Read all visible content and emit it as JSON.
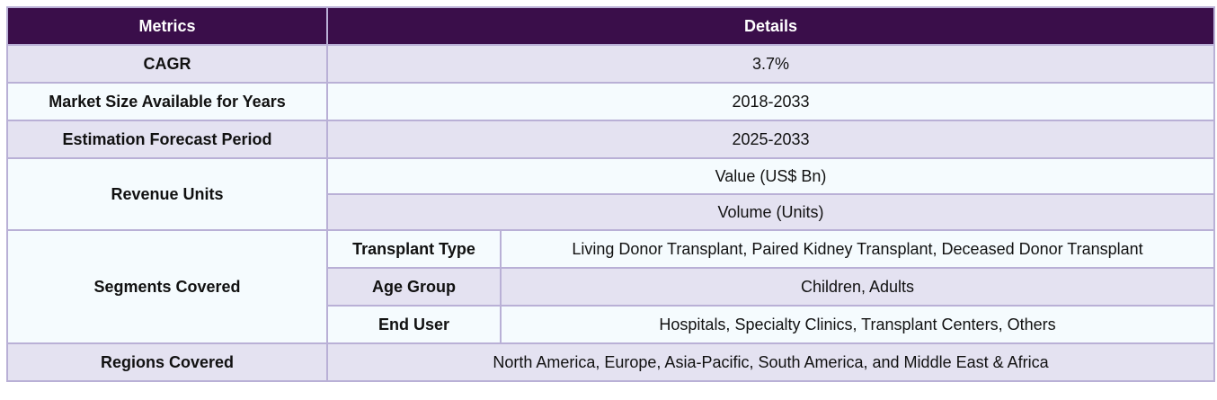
{
  "header": {
    "metrics": "Metrics",
    "details": "Details"
  },
  "rows": {
    "cagr": {
      "label": "CAGR",
      "value": "3.7%"
    },
    "market_size": {
      "label": "Market Size Available for Years",
      "value": "2018-2033"
    },
    "forecast": {
      "label": "Estimation Forecast Period",
      "value": "2025-2033"
    },
    "revenue_units": {
      "label": "Revenue Units",
      "values": [
        "Value (US$ Bn)",
        "Volume (Units)"
      ]
    },
    "segments": {
      "label": "Segments Covered",
      "items": [
        {
          "name": "Transplant Type",
          "value": "Living Donor Transplant, Paired Kidney Transplant, Deceased Donor Transplant"
        },
        {
          "name": "Age Group",
          "value": "Children, Adults"
        },
        {
          "name": "End User",
          "value": "Hospitals, Specialty Clinics, Transplant Centers, Others"
        }
      ]
    },
    "regions": {
      "label": "Regions Covered",
      "value": "North America, Europe, Asia-Pacific, South America, and Middle East & Africa"
    }
  },
  "colors": {
    "header_bg": "#3a0e4a",
    "row_lavender": "#e4e2f1",
    "row_pale": "#f5fbfe",
    "border": "#b9b0d6"
  }
}
